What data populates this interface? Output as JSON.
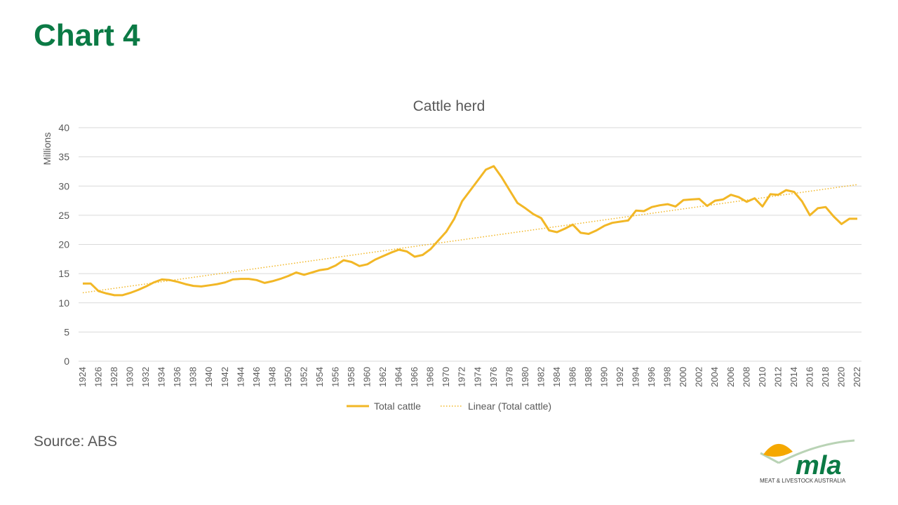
{
  "slide": {
    "title": "Chart 4",
    "source": "Source: ABS"
  },
  "logo": {
    "wordmark": "mla",
    "subtitle": "MEAT & LIVESTOCK AUSTRALIA",
    "colors": {
      "sun": "#f5a800",
      "green": "#0b7a45",
      "arc": "#b9d3b5"
    }
  },
  "colors": {
    "series": "#f2b726",
    "trend": "#f2b726",
    "title": "#0b7a45",
    "grid": "#d9d9d9",
    "text": "#595959"
  },
  "chart_data": {
    "type": "line",
    "title": "Cattle herd",
    "ylabel": "Millions",
    "xlabel": "",
    "ylim": [
      0,
      40
    ],
    "yticks": [
      0,
      5,
      10,
      15,
      20,
      25,
      30,
      35,
      40
    ],
    "xtick_step": 2,
    "grid": "horizontal",
    "legend_position": "bottom",
    "x": [
      1924,
      1925,
      1926,
      1927,
      1928,
      1929,
      1930,
      1931,
      1932,
      1933,
      1934,
      1935,
      1936,
      1937,
      1938,
      1939,
      1940,
      1941,
      1942,
      1943,
      1944,
      1945,
      1946,
      1947,
      1948,
      1949,
      1950,
      1951,
      1952,
      1953,
      1954,
      1955,
      1956,
      1957,
      1958,
      1959,
      1960,
      1961,
      1962,
      1963,
      1964,
      1965,
      1966,
      1967,
      1968,
      1969,
      1970,
      1971,
      1972,
      1973,
      1974,
      1975,
      1976,
      1977,
      1978,
      1979,
      1980,
      1981,
      1982,
      1983,
      1984,
      1985,
      1986,
      1987,
      1988,
      1989,
      1990,
      1991,
      1992,
      1993,
      1994,
      1995,
      1996,
      1997,
      1998,
      1999,
      2000,
      2001,
      2002,
      2003,
      2004,
      2005,
      2006,
      2007,
      2008,
      2009,
      2010,
      2011,
      2012,
      2013,
      2014,
      2015,
      2016,
      2017,
      2018,
      2019,
      2020,
      2021,
      2022
    ],
    "series": [
      {
        "name": "Total cattle",
        "style": "solid",
        "values": [
          13.3,
          13.3,
          12.0,
          11.6,
          11.3,
          11.3,
          11.7,
          12.2,
          12.8,
          13.5,
          14.0,
          13.9,
          13.6,
          13.2,
          12.9,
          12.8,
          13.0,
          13.2,
          13.5,
          14.0,
          14.1,
          14.1,
          13.9,
          13.4,
          13.7,
          14.1,
          14.6,
          15.2,
          14.8,
          15.2,
          15.6,
          15.8,
          16.4,
          17.3,
          17.0,
          16.3,
          16.6,
          17.4,
          18.0,
          18.6,
          19.1,
          18.8,
          17.9,
          18.2,
          19.2,
          20.7,
          22.2,
          24.4,
          27.4,
          29.2,
          31.0,
          32.8,
          33.4,
          31.5,
          29.3,
          27.1,
          26.2,
          25.2,
          24.5,
          22.4,
          22.1,
          22.7,
          23.4,
          22.0,
          21.8,
          22.4,
          23.2,
          23.7,
          23.9,
          24.1,
          25.8,
          25.7,
          26.4,
          26.7,
          26.9,
          26.5,
          27.6,
          27.7,
          27.8,
          26.6,
          27.5,
          27.7,
          28.5,
          28.1,
          27.3,
          27.9,
          26.5,
          28.6,
          28.5,
          29.3,
          29.0,
          27.4,
          25.0,
          26.2,
          26.4,
          24.8,
          23.5,
          24.4,
          24.4
        ]
      },
      {
        "name": "Linear (Total cattle)",
        "style": "dotted",
        "trend_of": "Total cattle"
      }
    ]
  }
}
